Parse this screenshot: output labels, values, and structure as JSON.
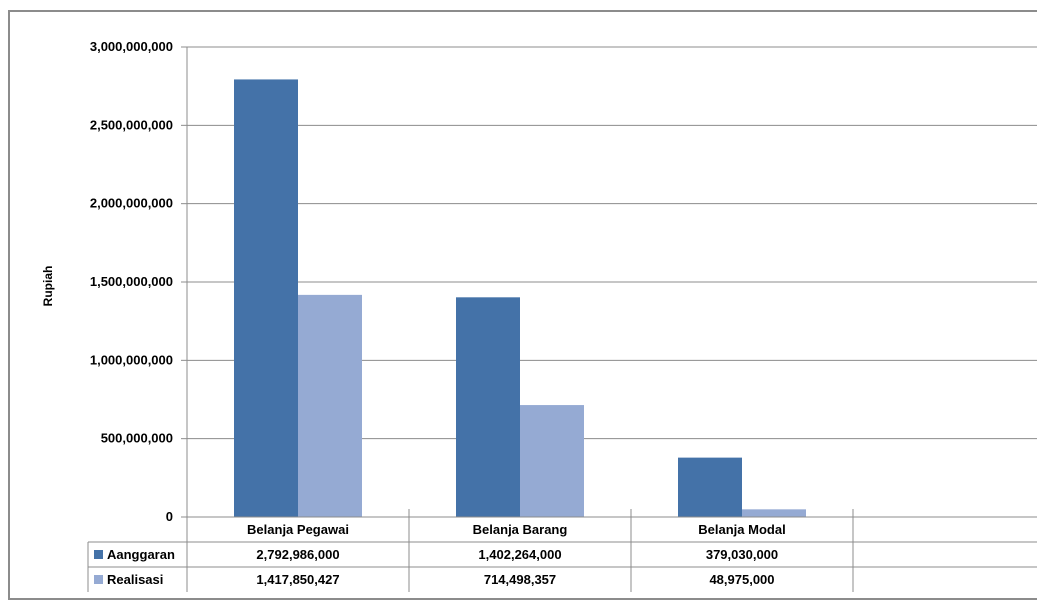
{
  "chart_data": {
    "type": "bar",
    "ylabel": "Rupiah",
    "ylim": [
      0,
      3000000000
    ],
    "yticks": [
      0,
      500000000,
      1000000000,
      1500000000,
      2000000000,
      2500000000,
      3000000000
    ],
    "ytick_labels": [
      "0",
      "500,000,000",
      "1,000,000,000",
      "1,500,000,000",
      "2,000,000,000",
      "2,500,000,000",
      "3,000,000,000"
    ],
    "categories": [
      "Belanja Pegawai",
      "Belanja Barang",
      "Belanja Modal",
      ""
    ],
    "series": [
      {
        "name": "Aanggaran",
        "color": "#4472a8",
        "values": [
          2792986000,
          1402264000,
          379030000,
          null
        ],
        "labels": [
          "2,792,986,000",
          "1,402,264,000",
          "379,030,000",
          ""
        ]
      },
      {
        "name": "Realisasi",
        "color": "#95aad3",
        "values": [
          1417850427,
          714498357,
          48975000,
          null
        ],
        "labels": [
          "1,417,850,427",
          "714,498,357",
          "48,975,000",
          ""
        ]
      }
    ],
    "grid": true,
    "legend": "data-table"
  }
}
